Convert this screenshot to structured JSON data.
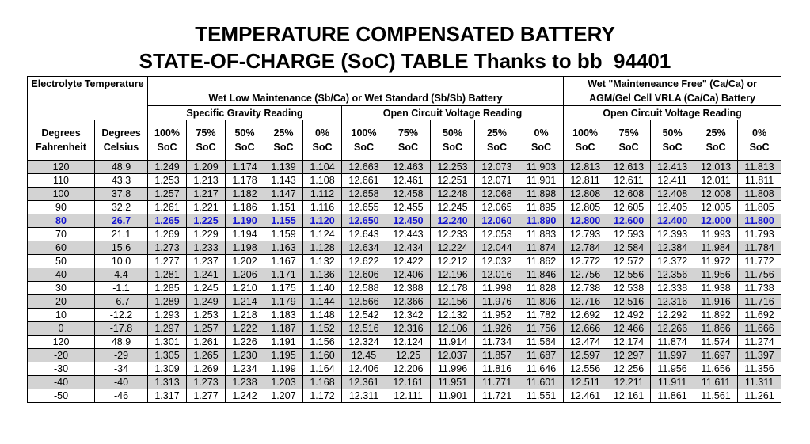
{
  "title_line1": "TEMPERATURE COMPENSATED BATTERY",
  "title_line2": "STATE-OF-CHARGE (SoC) TABLE Thanks to bb_94401",
  "headers": {
    "electrolyte": "Electrolyte Temperature",
    "wet_group": "Wet Low Maintenance (Sb/Ca) or Wet Standard (Sb/Sb) Battery",
    "mf_group_line1": "Wet \"Mainteneance Free\" (Ca/Ca) or",
    "mf_group_line2": "AGM/Gel Cell VRLA (Ca/Ca) Battery",
    "sg_reading": "Specific Gravity Reading",
    "ocv_reading": "Open Circuit Voltage Reading",
    "ocv_reading_mf": "Open Circuit Voltage Reading",
    "deg_f_line1": "Degrees",
    "deg_f_line2": "Fahrenheit",
    "deg_c_line1": "Degrees",
    "deg_c_line2": "Celsius",
    "soc_levels": [
      "100%",
      "75%",
      "50%",
      "25%",
      "0%",
      "100%",
      "75%",
      "50%",
      "25%",
      "0%",
      "100%",
      "75%",
      "50%",
      "25%",
      "0%"
    ],
    "soc_suffix": "SoC"
  },
  "rows": [
    {
      "f": "120",
      "c": "48.9",
      "sg": [
        "1.249",
        "1.209",
        "1.174",
        "1.139",
        "1.104"
      ],
      "ocv": [
        "12.663",
        "12.463",
        "12.253",
        "12.073",
        "11.903"
      ],
      "mf": [
        "12.813",
        "12.613",
        "12.413",
        "12.013",
        "11.813"
      ],
      "style": "shade"
    },
    {
      "f": "110",
      "c": "43.3",
      "sg": [
        "1.253",
        "1.213",
        "1.178",
        "1.143",
        "1.108"
      ],
      "ocv": [
        "12.661",
        "12.461",
        "12.251",
        "12.071",
        "11.901"
      ],
      "mf": [
        "12.811",
        "12.611",
        "12.411",
        "12.011",
        "11.811"
      ],
      "style": "plain"
    },
    {
      "f": "100",
      "c": "37.8",
      "sg": [
        "1.257",
        "1.217",
        "1.182",
        "1.147",
        "1.112"
      ],
      "ocv": [
        "12.658",
        "12.458",
        "12.248",
        "12.068",
        "11.898"
      ],
      "mf": [
        "12.808",
        "12.608",
        "12.408",
        "12.008",
        "11.808"
      ],
      "style": "shade"
    },
    {
      "f": "90",
      "c": "32.2",
      "sg": [
        "1.261",
        "1.221",
        "1.186",
        "1.151",
        "1.116"
      ],
      "ocv": [
        "12.655",
        "12.455",
        "12.245",
        "12.065",
        "11.895"
      ],
      "mf": [
        "12.805",
        "12.605",
        "12.405",
        "12.005",
        "11.805"
      ],
      "style": "plain"
    },
    {
      "f": "80",
      "c": "26.7",
      "sg": [
        "1.265",
        "1.225",
        "1.190",
        "1.155",
        "1.120"
      ],
      "ocv": [
        "12.650",
        "12.450",
        "12.240",
        "12.060",
        "11.890"
      ],
      "mf": [
        "12.800",
        "12.600",
        "12.400",
        "12.000",
        "11.800"
      ],
      "style": "hl"
    },
    {
      "f": "70",
      "c": "21.1",
      "sg": [
        "1.269",
        "1.229",
        "1.194",
        "1.159",
        "1.124"
      ],
      "ocv": [
        "12.643",
        "12.443",
        "12.233",
        "12.053",
        "11.883"
      ],
      "mf": [
        "12.793",
        "12.593",
        "12.393",
        "11.993",
        "11.793"
      ],
      "style": "plain"
    },
    {
      "f": "60",
      "c": "15.6",
      "sg": [
        "1.273",
        "1.233",
        "1.198",
        "1.163",
        "1.128"
      ],
      "ocv": [
        "12.634",
        "12.434",
        "12.224",
        "12.044",
        "11.874"
      ],
      "mf": [
        "12.784",
        "12.584",
        "12.384",
        "11.984",
        "11.784"
      ],
      "style": "shade"
    },
    {
      "f": "50",
      "c": "10.0",
      "sg": [
        "1.277",
        "1.237",
        "1.202",
        "1.167",
        "1.132"
      ],
      "ocv": [
        "12.622",
        "12.422",
        "12.212",
        "12.032",
        "11.862"
      ],
      "mf": [
        "12.772",
        "12.572",
        "12.372",
        "11.972",
        "11.772"
      ],
      "style": "plain"
    },
    {
      "f": "40",
      "c": "4.4",
      "sg": [
        "1.281",
        "1.241",
        "1.206",
        "1.171",
        "1.136"
      ],
      "ocv": [
        "12.606",
        "12.406",
        "12.196",
        "12.016",
        "11.846"
      ],
      "mf": [
        "12.756",
        "12.556",
        "12.356",
        "11.956",
        "11.756"
      ],
      "style": "shade"
    },
    {
      "f": "30",
      "c": "-1.1",
      "sg": [
        "1.285",
        "1.245",
        "1.210",
        "1.175",
        "1.140"
      ],
      "ocv": [
        "12.588",
        "12.388",
        "12.178",
        "11.998",
        "11.828"
      ],
      "mf": [
        "12.738",
        "12.538",
        "12.338",
        "11.938",
        "11.738"
      ],
      "style": "plain"
    },
    {
      "f": "20",
      "c": "-6.7",
      "sg": [
        "1.289",
        "1.249",
        "1.214",
        "1.179",
        "1.144"
      ],
      "ocv": [
        "12.566",
        "12.366",
        "12.156",
        "11.976",
        "11.806"
      ],
      "mf": [
        "12.716",
        "12.516",
        "12.316",
        "11.916",
        "11.716"
      ],
      "style": "shade"
    },
    {
      "f": "10",
      "c": "-12.2",
      "sg": [
        "1.293",
        "1.253",
        "1.218",
        "1.183",
        "1.148"
      ],
      "ocv": [
        "12.542",
        "12.342",
        "12.132",
        "11.952",
        "11.782"
      ],
      "mf": [
        "12.692",
        "12.492",
        "12.292",
        "11.892",
        "11.692"
      ],
      "style": "plain"
    },
    {
      "f": "0",
      "c": "-17.8",
      "sg": [
        "1.297",
        "1.257",
        "1.222",
        "1.187",
        "1.152"
      ],
      "ocv": [
        "12.516",
        "12.316",
        "12.106",
        "11.926",
        "11.756"
      ],
      "mf": [
        "12.666",
        "12.466",
        "12.266",
        "11.866",
        "11.666"
      ],
      "style": "shade"
    },
    {
      "f": "120",
      "c": "48.9",
      "sg": [
        "1.301",
        "1.261",
        "1.226",
        "1.191",
        "1.156"
      ],
      "ocv": [
        "12.324",
        "12.124",
        "11.914",
        "11.734",
        "11.564"
      ],
      "mf": [
        "12.474",
        "12.174",
        "11.874",
        "11.574",
        "11.274"
      ],
      "style": "plain"
    },
    {
      "f": "-20",
      "c": "-29",
      "sg": [
        "1.305",
        "1.265",
        "1.230",
        "1.195",
        "1.160"
      ],
      "ocv": [
        "12.45",
        "12.25",
        "12.037",
        "11.857",
        "11.687"
      ],
      "mf": [
        "12.597",
        "12.297",
        "11.997",
        "11.697",
        "11.397"
      ],
      "style": "shade"
    },
    {
      "f": "-30",
      "c": "-34",
      "sg": [
        "1.309",
        "1.269",
        "1.234",
        "1.199",
        "1.164"
      ],
      "ocv": [
        "12.406",
        "12.206",
        "11.996",
        "11.816",
        "11.646"
      ],
      "mf": [
        "12.556",
        "12.256",
        "11.956",
        "11.656",
        "11.356"
      ],
      "style": "plain"
    },
    {
      "f": "-40",
      "c": "-40",
      "sg": [
        "1.313",
        "1.273",
        "1.238",
        "1.203",
        "1.168"
      ],
      "ocv": [
        "12.361",
        "12.161",
        "11.951",
        "11.771",
        "11.601"
      ],
      "mf": [
        "12.511",
        "12.211",
        "11.911",
        "11.611",
        "11.311"
      ],
      "style": "shade"
    },
    {
      "f": "-50",
      "c": "-46",
      "sg": [
        "1.317",
        "1.277",
        "1.242",
        "1.207",
        "1.172"
      ],
      "ocv": [
        "12.311",
        "12.111",
        "11.901",
        "11.721",
        "11.551"
      ],
      "mf": [
        "12.461",
        "12.161",
        "11.861",
        "11.561",
        "11.261"
      ],
      "style": "plain"
    }
  ]
}
